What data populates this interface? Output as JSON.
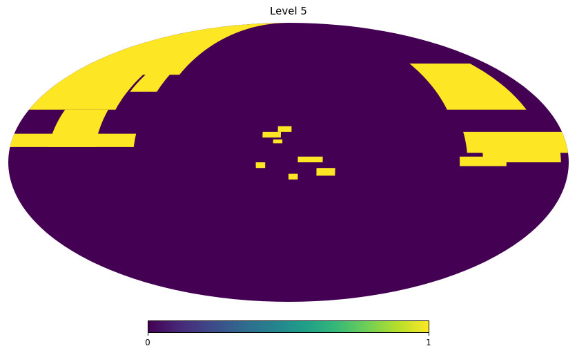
{
  "title": "Level 5",
  "map": {
    "projection": "mollweide",
    "level": 5,
    "colormap": "viridis",
    "background_value": 0,
    "mask_value": 1,
    "colors": {
      "low": "#440154",
      "high": "#fde725"
    },
    "masked_regions": [
      {
        "lon_min": 90,
        "lon_max": 180,
        "lat_min": 48,
        "lat_max": 90
      },
      {
        "lon_min": 120,
        "lon_max": 180,
        "lat_min": 28,
        "lat_max": 50
      },
      {
        "lon_min": 125,
        "lon_max": 155,
        "lat_min": 8,
        "lat_max": 28
      },
      {
        "lon_min": 100,
        "lon_max": 180,
        "lat_min": 8,
        "lat_max": 15
      },
      {
        "lon_min": 98,
        "lon_max": 118,
        "lat_min": 38,
        "lat_max": 55
      },
      {
        "lon_min": 15,
        "lon_max": 21,
        "lat_min": -3,
        "lat_max": 0
      },
      {
        "lon_min": -2,
        "lon_max": 7,
        "lat_min": 16,
        "lat_max": 19
      },
      {
        "lon_min": 5,
        "lon_max": 17,
        "lat_min": 13,
        "lat_max": 16
      },
      {
        "lon_min": 4,
        "lon_max": 10,
        "lat_min": 10,
        "lat_max": 12
      },
      {
        "lon_min": 0,
        "lon_max": -6,
        "lat_min": -9,
        "lat_max": -6
      },
      {
        "lon_min": -6,
        "lon_max": -22,
        "lat_min": 0,
        "lat_max": 3
      },
      {
        "lon_min": -18,
        "lon_max": -30,
        "lat_min": -7,
        "lat_max": -3
      },
      {
        "lon_min": -110,
        "lon_max": -165,
        "lat_min": 28,
        "lat_max": 55
      },
      {
        "lon_min": -115,
        "lon_max": -180,
        "lat_min": 5,
        "lat_max": 16
      },
      {
        "lon_min": -125,
        "lon_max": -175,
        "lat_min": 0,
        "lat_max": 6
      },
      {
        "lon_min": -110,
        "lon_max": -140,
        "lat_min": -2,
        "lat_max": 3
      }
    ]
  },
  "colorbar": {
    "min_label": "0",
    "max_label": "1",
    "min": 0,
    "max": 1
  }
}
